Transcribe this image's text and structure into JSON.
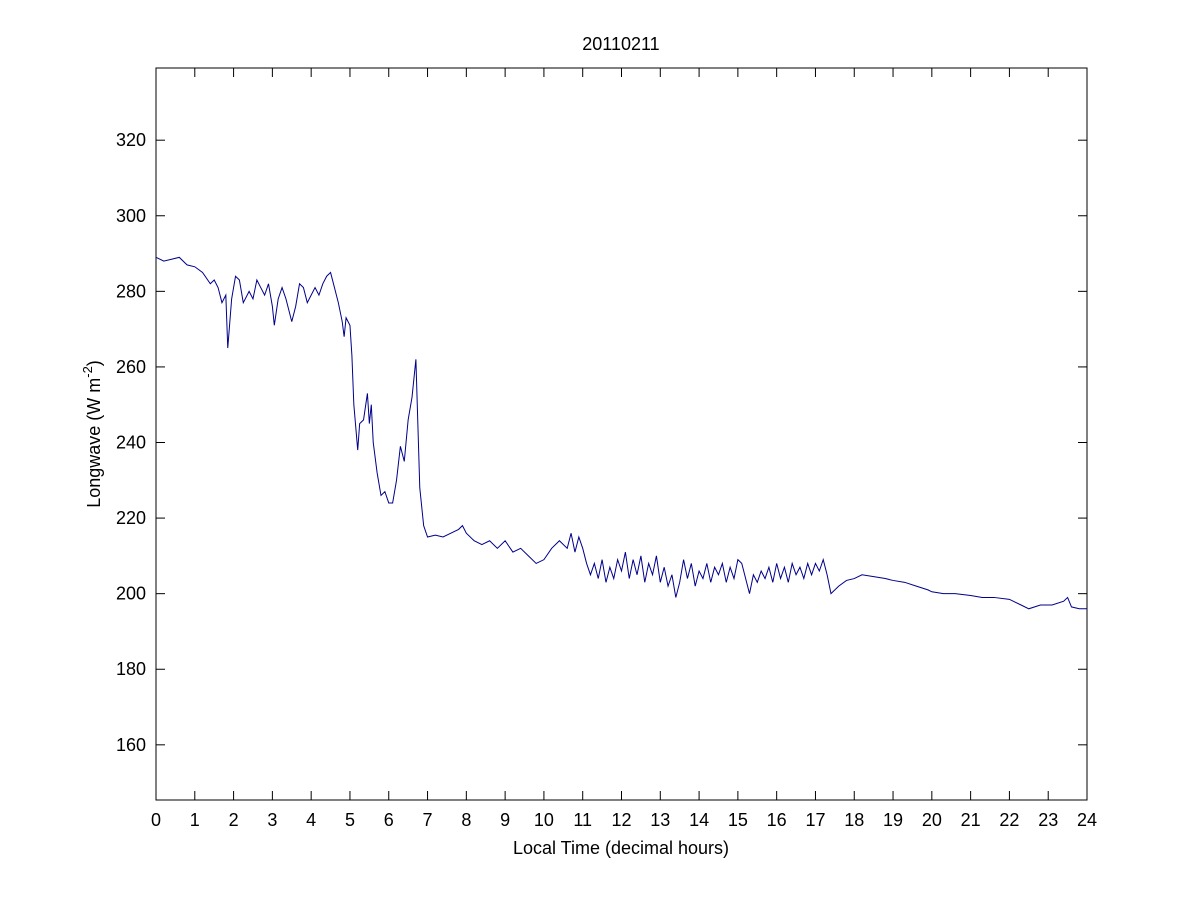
{
  "chart_data": {
    "type": "line",
    "title": "20110211",
    "xlabel": "Local Time (decimal hours)",
    "ylabel": [
      "Longwave (W m",
      "-2",
      ")"
    ],
    "xlim": [
      0,
      24
    ],
    "ylim": [
      145.4,
      339.1
    ],
    "xticks": [
      0,
      1,
      2,
      3,
      4,
      5,
      6,
      7,
      8,
      9,
      10,
      11,
      12,
      13,
      14,
      15,
      16,
      17,
      18,
      19,
      20,
      21,
      22,
      23,
      24
    ],
    "yticks": [
      160,
      180,
      200,
      220,
      240,
      260,
      280,
      300,
      320
    ],
    "grid": false,
    "series": [
      {
        "color": "#00008b",
        "x": [
          0,
          0.2,
          0.4,
          0.6,
          0.8,
          1.0,
          1.2,
          1.4,
          1.5,
          1.6,
          1.7,
          1.8,
          1.85,
          1.95,
          2.05,
          2.15,
          2.25,
          2.4,
          2.5,
          2.6,
          2.7,
          2.8,
          2.9,
          3.0,
          3.05,
          3.15,
          3.25,
          3.35,
          3.5,
          3.6,
          3.7,
          3.8,
          3.9,
          4.0,
          4.1,
          4.2,
          4.3,
          4.4,
          4.5,
          4.6,
          4.7,
          4.8,
          4.85,
          4.9,
          5.0,
          5.05,
          5.1,
          5.2,
          5.25,
          5.35,
          5.45,
          5.5,
          5.55,
          5.6,
          5.7,
          5.8,
          5.9,
          6.0,
          6.1,
          6.2,
          6.3,
          6.4,
          6.5,
          6.6,
          6.7,
          6.75,
          6.8,
          6.9,
          7.0,
          7.2,
          7.4,
          7.6,
          7.8,
          7.9,
          8.0,
          8.2,
          8.4,
          8.6,
          8.8,
          9.0,
          9.2,
          9.4,
          9.6,
          9.8,
          10.0,
          10.2,
          10.4,
          10.6,
          10.7,
          10.8,
          10.9,
          11.0,
          11.1,
          11.2,
          11.3,
          11.4,
          11.5,
          11.6,
          11.7,
          11.8,
          11.9,
          12.0,
          12.1,
          12.2,
          12.3,
          12.4,
          12.5,
          12.6,
          12.7,
          12.8,
          12.9,
          13.0,
          13.1,
          13.2,
          13.3,
          13.4,
          13.5,
          13.6,
          13.7,
          13.8,
          13.9,
          14.0,
          14.1,
          14.2,
          14.3,
          14.4,
          14.5,
          14.6,
          14.7,
          14.8,
          14.9,
          15.0,
          15.1,
          15.2,
          15.3,
          15.4,
          15.5,
          15.6,
          15.7,
          15.8,
          15.9,
          16.0,
          16.1,
          16.2,
          16.3,
          16.4,
          16.5,
          16.6,
          16.7,
          16.8,
          16.9,
          17.0,
          17.1,
          17.2,
          17.3,
          17.4,
          17.6,
          17.8,
          18.0,
          18.2,
          18.5,
          18.8,
          19.0,
          19.3,
          19.6,
          19.9,
          20.0,
          20.3,
          20.6,
          21.0,
          21.3,
          21.6,
          22.0,
          22.3,
          22.5,
          22.8,
          23.1,
          23.4,
          23.5,
          23.6,
          23.8,
          24
        ],
        "values": [
          289,
          288,
          288.5,
          289,
          287,
          286.5,
          285,
          282,
          283,
          281,
          277,
          279,
          265,
          278,
          284,
          283,
          277,
          280,
          278,
          283,
          281,
          279,
          282,
          276,
          271,
          278,
          281,
          278,
          272,
          276,
          282,
          281,
          277,
          279,
          281,
          279,
          282,
          284,
          285,
          281,
          277,
          272,
          268,
          273,
          271,
          263,
          250,
          238,
          245,
          246,
          253,
          245,
          250,
          240,
          232,
          226,
          227,
          224,
          224,
          230,
          239,
          235,
          246,
          252,
          262,
          245,
          228,
          218,
          215,
          215.5,
          215,
          216,
          217,
          218,
          216,
          214,
          213,
          214,
          212,
          214,
          211,
          212,
          210,
          208,
          209,
          212,
          214,
          212,
          216,
          211,
          215,
          212,
          208,
          205,
          208,
          204,
          209,
          203,
          207,
          204,
          209,
          206,
          211,
          204,
          209,
          205,
          210,
          203,
          208,
          205,
          210,
          203,
          207,
          202,
          205,
          199,
          203,
          209,
          204,
          208,
          202,
          206,
          204,
          208,
          203,
          207,
          205,
          208,
          203,
          207,
          204,
          209,
          208,
          204,
          200,
          205,
          203,
          206,
          204,
          207,
          203,
          208,
          204,
          207,
          203,
          208,
          205,
          207,
          204,
          208,
          205,
          208,
          206,
          209,
          205,
          200,
          202,
          203.5,
          204,
          205,
          204.5,
          204,
          203.5,
          203,
          202,
          201,
          200.5,
          200,
          200,
          199.5,
          199,
          199,
          198.5,
          197,
          196,
          197,
          197,
          198,
          199,
          196.5,
          196,
          196
        ]
      }
    ]
  }
}
